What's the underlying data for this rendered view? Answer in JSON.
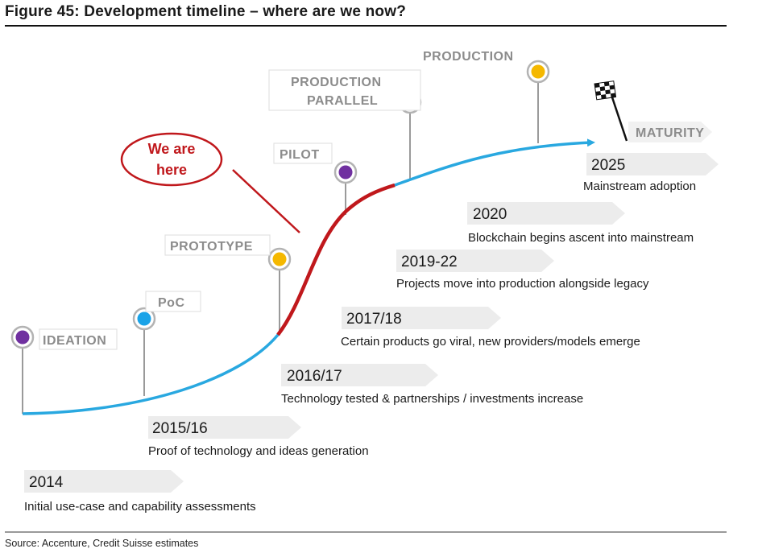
{
  "figure": {
    "title": "Figure 45: Development timeline – where are we now?",
    "source": "Source: Accenture, Credit Suisse estimates"
  },
  "stages": [
    {
      "label": "IDEATION",
      "dot_color": "#7030a0"
    },
    {
      "label": "PoC",
      "dot_color": "#1aa3e8"
    },
    {
      "label": "PROTOTYPE",
      "dot_color": "#f5b800"
    },
    {
      "label": "PILOT",
      "dot_color": "#7030a0"
    },
    {
      "label": "PRODUCTION PARALLEL",
      "line1": "PRODUCTION",
      "line2": "PARALLEL",
      "dot_color": "#1aa3e8"
    },
    {
      "label": "PRODUCTION",
      "dot_color": "#f5b800"
    },
    {
      "label": "MATURITY"
    }
  ],
  "we_are_here": {
    "line1": "We are",
    "line2": "here"
  },
  "milestones": [
    {
      "year": "2014",
      "description": "Initial use-case and capability assessments"
    },
    {
      "year": "2015/16",
      "description": "Proof of technology and ideas generation"
    },
    {
      "year": "2016/17",
      "description": "Technology tested & partnerships / investments increase"
    },
    {
      "year": "2017/18",
      "description": "Certain products go viral, new providers/models emerge"
    },
    {
      "year": "2019-22",
      "description": "Projects move into production alongside legacy"
    },
    {
      "year": "2020",
      "description": "Blockchain begins ascent into mainstream"
    },
    {
      "year": "2025",
      "description": "Mainstream adoption"
    }
  ],
  "colors": {
    "curve": "#29a8e0",
    "highlight": "#c0181c",
    "arrow_fill": "#ececec",
    "stem": "#9a9a9a"
  }
}
